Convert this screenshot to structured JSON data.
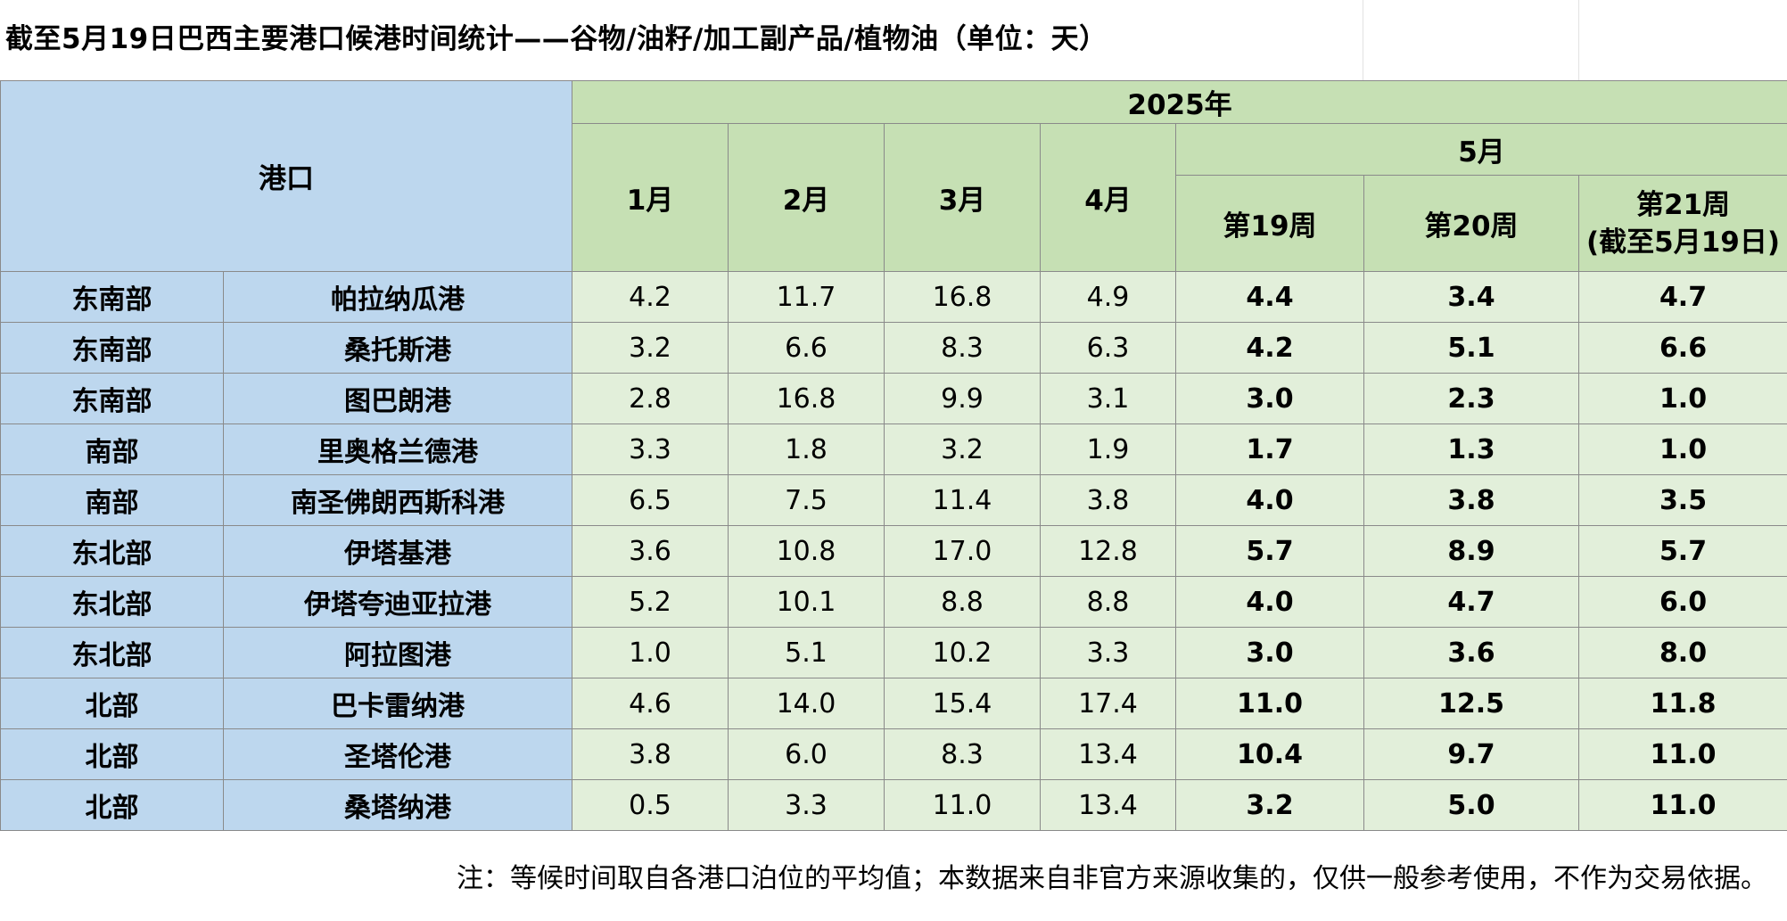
{
  "title": "截至5月19日巴西主要港口候港时间统计——谷物/油籽/加工副产品/植物油（单位：天）",
  "header": {
    "port": "港口",
    "year": "2025年",
    "jan": "1月",
    "feb": "2月",
    "mar": "3月",
    "apr": "4月",
    "may": "5月",
    "week19": "第19周",
    "week20": "第20周",
    "week21_line1": "第21周",
    "week21_line2": "(截至5月19日)"
  },
  "rows": [
    {
      "region": "东南部",
      "port": "帕拉纳瓜港",
      "jan": "4.2",
      "feb": "11.7",
      "mar": "16.8",
      "apr": "4.9",
      "w19": "4.4",
      "w20": "3.4",
      "w21": "4.7"
    },
    {
      "region": "东南部",
      "port": "桑托斯港",
      "jan": "3.2",
      "feb": "6.6",
      "mar": "8.3",
      "apr": "6.3",
      "w19": "4.2",
      "w20": "5.1",
      "w21": "6.6"
    },
    {
      "region": "东南部",
      "port": "图巴朗港",
      "jan": "2.8",
      "feb": "16.8",
      "mar": "9.9",
      "apr": "3.1",
      "w19": "3.0",
      "w20": "2.3",
      "w21": "1.0"
    },
    {
      "region": "南部",
      "port": "里奥格兰德港",
      "jan": "3.3",
      "feb": "1.8",
      "mar": "3.2",
      "apr": "1.9",
      "w19": "1.7",
      "w20": "1.3",
      "w21": "1.0"
    },
    {
      "region": "南部",
      "port": "南圣佛朗西斯科港",
      "jan": "6.5",
      "feb": "7.5",
      "mar": "11.4",
      "apr": "3.8",
      "w19": "4.0",
      "w20": "3.8",
      "w21": "3.5"
    },
    {
      "region": "东北部",
      "port": "伊塔基港",
      "jan": "3.6",
      "feb": "10.8",
      "mar": "17.0",
      "apr": "12.8",
      "w19": "5.7",
      "w20": "8.9",
      "w21": "5.7"
    },
    {
      "region": "东北部",
      "port": "伊塔夸迪亚拉港",
      "jan": "5.2",
      "feb": "10.1",
      "mar": "8.8",
      "apr": "8.8",
      "w19": "4.0",
      "w20": "4.7",
      "w21": "6.0"
    },
    {
      "region": "东北部",
      "port": "阿拉图港",
      "jan": "1.0",
      "feb": "5.1",
      "mar": "10.2",
      "apr": "3.3",
      "w19": "3.0",
      "w20": "3.6",
      "w21": "8.0"
    },
    {
      "region": "北部",
      "port": "巴卡雷纳港",
      "jan": "4.6",
      "feb": "14.0",
      "mar": "15.4",
      "apr": "17.4",
      "w19": "11.0",
      "w20": "12.5",
      "w21": "11.8"
    },
    {
      "region": "北部",
      "port": "圣塔伦港",
      "jan": "3.8",
      "feb": "6.0",
      "mar": "8.3",
      "apr": "13.4",
      "w19": "10.4",
      "w20": "9.7",
      "w21": "11.0"
    },
    {
      "region": "北部",
      "port": "桑塔纳港",
      "jan": "0.5",
      "feb": "3.3",
      "mar": "11.0",
      "apr": "13.4",
      "w19": "3.2",
      "w20": "5.0",
      "w21": "11.0"
    }
  ],
  "note": "注：等候时间取自各港口泊位的平均值；本数据来自非官方来源收集的，仅供一般参考使用，不作为交易依据。"
}
